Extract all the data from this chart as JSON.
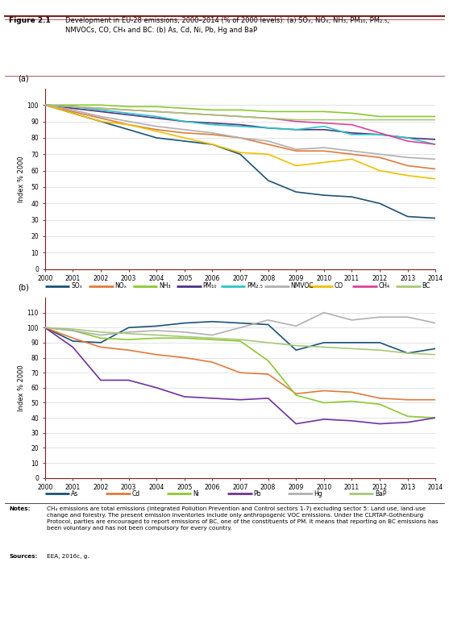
{
  "title": "Figure 2.1",
  "years": [
    2000,
    2001,
    2002,
    2003,
    2004,
    2005,
    2006,
    2007,
    2008,
    2009,
    2010,
    2011,
    2012,
    2013,
    2014
  ],
  "ylabel": "Index % 2000",
  "panel_a": {
    "SO2": [
      100,
      95,
      90,
      85,
      80,
      78,
      76,
      70,
      54,
      47,
      45,
      44,
      40,
      32,
      31
    ],
    "NOx": [
      100,
      96,
      92,
      88,
      85,
      83,
      82,
      80,
      76,
      72,
      72,
      70,
      68,
      63,
      61
    ],
    "NH3": [
      100,
      100,
      100,
      99,
      99,
      98,
      97,
      97,
      96,
      96,
      96,
      95,
      93,
      93,
      93
    ],
    "PM10": [
      100,
      98,
      96,
      94,
      92,
      90,
      89,
      88,
      86,
      85,
      85,
      83,
      82,
      80,
      79
    ],
    "PM25": [
      100,
      99,
      97,
      95,
      93,
      90,
      88,
      87,
      86,
      85,
      87,
      82,
      82,
      80,
      76
    ],
    "NMVOC": [
      100,
      97,
      93,
      90,
      87,
      85,
      83,
      80,
      78,
      73,
      74,
      72,
      70,
      68,
      67
    ],
    "CO": [
      100,
      95,
      90,
      88,
      84,
      80,
      76,
      71,
      70,
      63,
      65,
      67,
      60,
      57,
      55
    ],
    "CH4": [
      100,
      99,
      98,
      97,
      96,
      95,
      94,
      93,
      92,
      90,
      89,
      88,
      83,
      78,
      76
    ],
    "BC": [
      100,
      99,
      98,
      97,
      96,
      95,
      94,
      93,
      92,
      91,
      91,
      91,
      91,
      91,
      91
    ]
  },
  "panel_a_colors": {
    "SO2": "#1a5276",
    "NOx": "#e07b39",
    "NH3": "#8cc832",
    "PM10": "#4b3486",
    "PM25": "#2ec4c4",
    "NMVOC": "#b0b0b0",
    "CO": "#f0c000",
    "CH4": "#d94499",
    "BC": "#a8c878"
  },
  "panel_b": {
    "As": [
      100,
      91,
      90,
      100,
      101,
      103,
      104,
      103,
      102,
      85,
      90,
      90,
      90,
      83,
      86
    ],
    "Cd": [
      100,
      93,
      87,
      85,
      82,
      80,
      77,
      70,
      69,
      56,
      58,
      57,
      53,
      52,
      52
    ],
    "Ni": [
      100,
      98,
      93,
      92,
      93,
      93,
      92,
      91,
      78,
      55,
      50,
      51,
      49,
      41,
      40
    ],
    "Pb": [
      100,
      87,
      65,
      65,
      60,
      54,
      53,
      52,
      53,
      36,
      39,
      38,
      36,
      37,
      40
    ],
    "Hg": [
      100,
      98,
      95,
      97,
      98,
      97,
      95,
      100,
      105,
      101,
      110,
      105,
      107,
      107,
      103
    ],
    "BaP": [
      100,
      99,
      97,
      96,
      95,
      94,
      93,
      92,
      90,
      88,
      87,
      86,
      85,
      83,
      82
    ]
  },
  "panel_b_colors": {
    "As": "#1a5276",
    "Cd": "#e07b39",
    "Ni": "#8cc832",
    "Pb": "#7030a0",
    "Hg": "#b0b0b0",
    "BaP": "#a8c878"
  },
  "legend_a": [
    [
      "SOₓ",
      "#1a5276"
    ],
    [
      "NOₓ",
      "#e07b39"
    ],
    [
      "NH₃",
      "#8cc832"
    ],
    [
      "PM₁₀",
      "#4b3486"
    ],
    [
      "PM₂.₅",
      "#2ec4c4"
    ],
    [
      "NMVOC",
      "#b0b0b0"
    ],
    [
      "CO",
      "#f0c000"
    ],
    [
      "CH₄",
      "#d94499"
    ],
    [
      "BC",
      "#a8c878"
    ]
  ],
  "legend_b": [
    [
      "As",
      "#1a5276"
    ],
    [
      "Cd",
      "#e07b39"
    ],
    [
      "Ni",
      "#8cc832"
    ],
    [
      "Pb",
      "#7030a0"
    ],
    [
      "Hg",
      "#b0b0b0"
    ],
    [
      "BaP",
      "#a8c878"
    ]
  ],
  "spine_color": "#8b1a1a",
  "grid_color": "#d8d8d8",
  "title_line_color": "#8b1a1a"
}
